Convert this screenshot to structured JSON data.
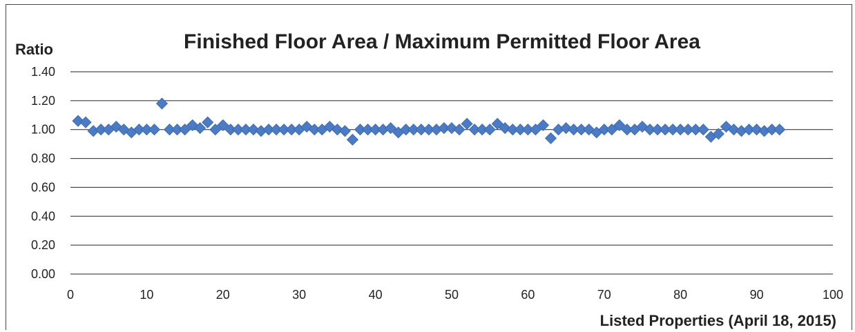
{
  "chart_data": {
    "type": "scatter",
    "title": "Finished Floor Area / Maximum Permitted Floor Area",
    "ylabel": "Ratio",
    "xlabel": "Listed Properties (April 18, 2015)",
    "xlim": [
      0,
      100
    ],
    "ylim": [
      0,
      1.4
    ],
    "x_ticks": [
      "0",
      "10",
      "20",
      "30",
      "40",
      "50",
      "60",
      "70",
      "80",
      "90",
      "100"
    ],
    "y_ticks": [
      "0.00",
      "0.20",
      "0.40",
      "0.60",
      "0.80",
      "1.00",
      "1.20",
      "1.40"
    ],
    "grid": true,
    "marker_color": "#4a7bc4",
    "series": [
      {
        "x": [
          1,
          2,
          3,
          4,
          5,
          6,
          7,
          8,
          9,
          10,
          11,
          12,
          13,
          14,
          15,
          16,
          17,
          18,
          19,
          20,
          21,
          22,
          23,
          24,
          25,
          26,
          27,
          28,
          29,
          30,
          31,
          32,
          33,
          34,
          35,
          36,
          37,
          38,
          39,
          40,
          41,
          42,
          43,
          44,
          45,
          46,
          47,
          48,
          49,
          50,
          51,
          52,
          53,
          54,
          55,
          56,
          57,
          58,
          59,
          60,
          61,
          62,
          63,
          64,
          65,
          66,
          67,
          68,
          69,
          70,
          71,
          72,
          73,
          74,
          75,
          76,
          77,
          78,
          79,
          80,
          81,
          82,
          83,
          84,
          85,
          86,
          87,
          88,
          89,
          90,
          91,
          92,
          93
        ],
        "y": [
          1.06,
          1.05,
          0.99,
          1.0,
          1.0,
          1.02,
          1.0,
          0.98,
          1.0,
          1.0,
          1.0,
          1.18,
          1.0,
          1.0,
          1.0,
          1.03,
          1.01,
          1.05,
          1.0,
          1.03,
          1.0,
          1.0,
          1.0,
          1.0,
          0.99,
          1.0,
          1.0,
          1.0,
          1.0,
          1.0,
          1.02,
          1.0,
          1.0,
          1.02,
          1.0,
          0.99,
          0.93,
          1.0,
          1.0,
          1.0,
          1.0,
          1.01,
          0.98,
          1.0,
          1.0,
          1.0,
          1.0,
          1.0,
          1.01,
          1.01,
          1.0,
          1.04,
          1.0,
          1.0,
          1.0,
          1.04,
          1.01,
          1.0,
          1.0,
          1.0,
          1.0,
          1.03,
          0.94,
          1.0,
          1.01,
          1.0,
          1.0,
          1.0,
          0.98,
          1.0,
          1.0,
          1.03,
          1.0,
          1.0,
          1.02,
          1.0,
          1.0,
          1.0,
          1.0,
          1.0,
          1.0,
          1.0,
          1.0,
          0.95,
          0.97,
          1.02,
          1.0,
          0.99,
          1.0,
          1.0,
          0.99,
          1.0,
          1.0
        ]
      }
    ]
  }
}
